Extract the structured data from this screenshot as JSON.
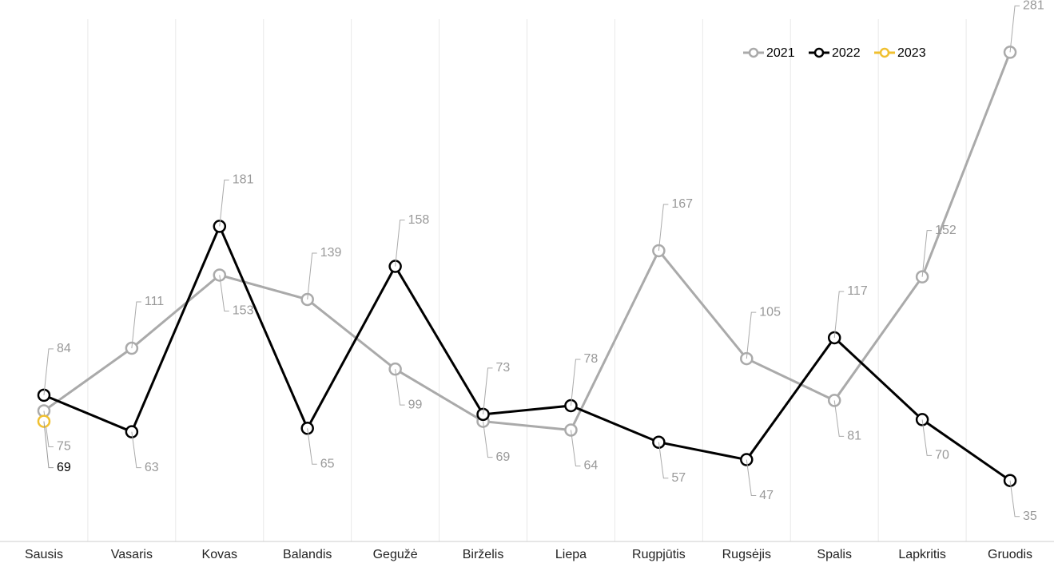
{
  "chart_data": {
    "type": "line",
    "categories": [
      "Sausis",
      "Vasaris",
      "Kovas",
      "Balandis",
      "Gegužė",
      "Birželis",
      "Liepa",
      "Rugpjūtis",
      "Rugsėjis",
      "Spalis",
      "Lapkritis",
      "Gruodis"
    ],
    "series": [
      {
        "name": "2021",
        "color": "#aaaaaa",
        "values": [
          75,
          111,
          153,
          139,
          99,
          69,
          64,
          167,
          105,
          81,
          152,
          281
        ]
      },
      {
        "name": "2022",
        "color": "#000000",
        "values": [
          84,
          63,
          181,
          65,
          158,
          73,
          78,
          57,
          47,
          117,
          70,
          35
        ]
      },
      {
        "name": "2023",
        "color": "#f0c030",
        "values": [
          69,
          null,
          null,
          null,
          null,
          null,
          null,
          null,
          null,
          null,
          null,
          null
        ]
      }
    ],
    "ylim": [
      0,
      300
    ]
  }
}
